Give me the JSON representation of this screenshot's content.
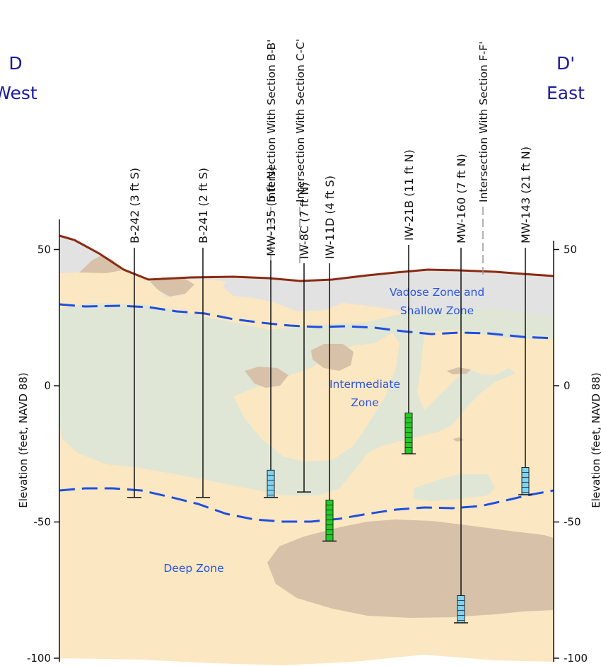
{
  "section": {
    "west_letter": "D",
    "west_label": "West",
    "east_letter": "D'",
    "east_label": "East"
  },
  "y_axis": {
    "label": "Elevation (feet, NAVD 88)",
    "ticks": [
      50,
      0,
      -50,
      -100
    ],
    "tick_labels": [
      "50",
      "0",
      "-50",
      "-100"
    ]
  },
  "zones": {
    "vadose_line1": "Vadose Zone and",
    "vadose_line2": "Shallow Zone",
    "intermediate_line1": "Intermediate",
    "intermediate_line2": "Zone",
    "deep": "Deep Zone"
  },
  "intersections": [
    "Intersection With Section B-B'",
    "Intersection With Section C-C'",
    "Intersection With Section F-F'"
  ],
  "wells": [
    {
      "label": "B-242 (3 ft S)",
      "bottom_elev": -41,
      "screen": null
    },
    {
      "label": "B-241 (2 ft S)",
      "bottom_elev": -41,
      "screen": null
    },
    {
      "label": "MW-135 (5 ft N)",
      "bottom_elev": -41,
      "screen": {
        "top": -31,
        "bottom": -41,
        "color": "blue"
      }
    },
    {
      "label": "IW-8C (7 ft N)",
      "bottom_elev": -39,
      "screen": null
    },
    {
      "label": "IW-11D (4 ft S)",
      "bottom_elev": -57,
      "screen": {
        "top": -42,
        "bottom": -57,
        "color": "green"
      }
    },
    {
      "label": "IW-21B (11 ft N)",
      "bottom_elev": -25,
      "screen": {
        "top": -10,
        "bottom": -25,
        "color": "green"
      }
    },
    {
      "label": "MW-160 (7 ft N)",
      "bottom_elev": -87,
      "screen": {
        "top": -77,
        "bottom": -87,
        "color": "blue"
      }
    },
    {
      "label": "MW-143 (21 ft N)",
      "bottom_elev": -40,
      "screen": {
        "top": -30,
        "bottom": -40,
        "color": "blue"
      }
    }
  ],
  "colors": {
    "ground_surface": "#8b2a12",
    "zone_boundary": "#1f4fe0",
    "fill_sand": "#fbe7c2",
    "fill_silt": "#dfe6d5",
    "fill_clay": "#d7c1a8",
    "fill_vadose": "#e2e2e2",
    "screen_blue": "#7fd3f2",
    "screen_green": "#22cc22"
  }
}
